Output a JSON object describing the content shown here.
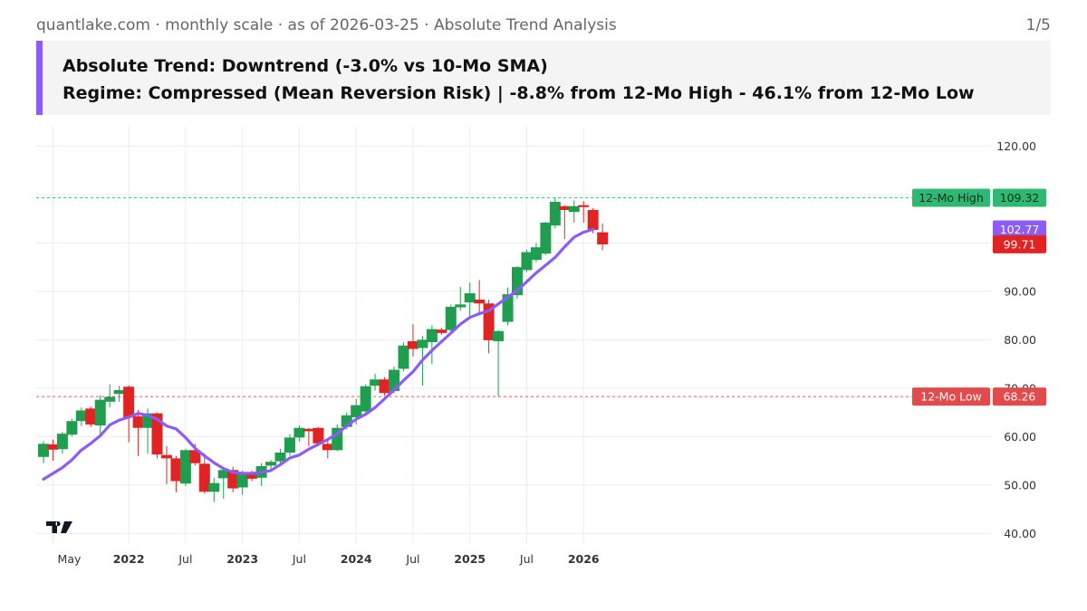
{
  "header": {
    "source_line": "quantlake.com · monthly scale · as of 2026-03-25 · Absolute Trend Analysis",
    "page_indicator": "1/5",
    "title_line1": "Absolute Trend: Downtrend (-3.0% vs 10-Mo SMA)",
    "title_line2": "Regime: Compressed (Mean Reversion Risk) | -8.8% from 12-Mo High - 46.1% from 12-Mo Low"
  },
  "colors": {
    "up": "#1e9e4e",
    "down": "#e02424",
    "sma": "#8c5cf6",
    "high_line": "#3fc48a",
    "low_line": "#e06060",
    "accent": "#8c5cf6"
  },
  "chart_data": {
    "type": "candlestick",
    "title": "",
    "xlabel": "",
    "ylabel": "",
    "ylim": [
      38,
      124
    ],
    "y_ticks": [
      "40.00",
      "50.00",
      "60.00",
      "70.00",
      "80.00",
      "90.00",
      "100.00",
      "110.00",
      "120.00"
    ],
    "x_tick_labels": [
      {
        "label": "May",
        "month": "2021-05",
        "bold": false
      },
      {
        "label": "2022",
        "month": "2022-01",
        "bold": true
      },
      {
        "label": "Jul",
        "month": "2022-07",
        "bold": false
      },
      {
        "label": "2023",
        "month": "2023-01",
        "bold": true
      },
      {
        "label": "Jul",
        "month": "2023-07",
        "bold": false
      },
      {
        "label": "2024",
        "month": "2024-01",
        "bold": true
      },
      {
        "label": "Jul",
        "month": "2024-07",
        "bold": false
      },
      {
        "label": "2025",
        "month": "2025-01",
        "bold": true
      },
      {
        "label": "Jul",
        "month": "2025-07",
        "bold": false
      },
      {
        "label": "2026",
        "month": "2026-01",
        "bold": true
      }
    ],
    "series": [
      {
        "name": "",
        "type": "ohlc",
        "data": [
          {
            "month": "2021-04",
            "o": 55.8,
            "h": 59.0,
            "l": 54.5,
            "c": 58.5
          },
          {
            "month": "2021-05",
            "o": 58.4,
            "h": 59.4,
            "l": 55.0,
            "c": 57.3
          },
          {
            "month": "2021-06",
            "o": 57.4,
            "h": 61.0,
            "l": 56.5,
            "c": 60.6
          },
          {
            "month": "2021-07",
            "o": 60.4,
            "h": 63.7,
            "l": 60.0,
            "c": 63.2
          },
          {
            "month": "2021-08",
            "o": 63.2,
            "h": 66.0,
            "l": 62.2,
            "c": 65.4
          },
          {
            "month": "2021-09",
            "o": 65.8,
            "h": 66.2,
            "l": 62.0,
            "c": 62.5
          },
          {
            "month": "2021-10",
            "o": 62.3,
            "h": 68.5,
            "l": 60.5,
            "c": 67.6
          },
          {
            "month": "2021-11",
            "o": 67.2,
            "h": 70.8,
            "l": 66.0,
            "c": 68.2
          },
          {
            "month": "2021-12",
            "o": 68.8,
            "h": 70.5,
            "l": 67.2,
            "c": 69.6
          },
          {
            "month": "2022-01",
            "o": 70.3,
            "h": 70.6,
            "l": 58.8,
            "c": 64.0
          },
          {
            "month": "2022-02",
            "o": 64.2,
            "h": 65.5,
            "l": 56.0,
            "c": 61.8
          },
          {
            "month": "2022-03",
            "o": 61.8,
            "h": 65.8,
            "l": 56.5,
            "c": 64.8
          },
          {
            "month": "2022-04",
            "o": 64.8,
            "h": 65.0,
            "l": 55.5,
            "c": 56.3
          },
          {
            "month": "2022-05",
            "o": 56.2,
            "h": 58.0,
            "l": 50.2,
            "c": 55.5
          },
          {
            "month": "2022-06",
            "o": 55.5,
            "h": 56.0,
            "l": 48.5,
            "c": 50.8
          },
          {
            "month": "2022-07",
            "o": 50.3,
            "h": 57.5,
            "l": 49.8,
            "c": 57.2
          },
          {
            "month": "2022-08",
            "o": 57.2,
            "h": 58.5,
            "l": 54.0,
            "c": 54.5
          },
          {
            "month": "2022-09",
            "o": 54.4,
            "h": 56.5,
            "l": 48.2,
            "c": 48.6
          },
          {
            "month": "2022-10",
            "o": 48.6,
            "h": 51.5,
            "l": 46.5,
            "c": 50.4
          },
          {
            "month": "2022-11",
            "o": 51.4,
            "h": 53.5,
            "l": 47.2,
            "c": 53.1
          },
          {
            "month": "2022-12",
            "o": 53.1,
            "h": 53.8,
            "l": 48.5,
            "c": 49.3
          },
          {
            "month": "2023-01",
            "o": 49.5,
            "h": 53.0,
            "l": 48.0,
            "c": 52.2
          },
          {
            "month": "2023-02",
            "o": 52.2,
            "h": 53.0,
            "l": 50.8,
            "c": 51.3
          },
          {
            "month": "2023-03",
            "o": 51.5,
            "h": 54.5,
            "l": 49.8,
            "c": 53.9
          },
          {
            "month": "2023-04",
            "o": 54.0,
            "h": 55.2,
            "l": 53.0,
            "c": 54.8
          },
          {
            "month": "2023-05",
            "o": 54.9,
            "h": 57.5,
            "l": 54.0,
            "c": 56.7
          },
          {
            "month": "2023-06",
            "o": 56.7,
            "h": 60.5,
            "l": 56.0,
            "c": 59.8
          },
          {
            "month": "2023-07",
            "o": 59.8,
            "h": 62.3,
            "l": 59.0,
            "c": 61.8
          },
          {
            "month": "2023-08",
            "o": 61.6,
            "h": 61.8,
            "l": 58.0,
            "c": 61.1
          },
          {
            "month": "2023-09",
            "o": 61.8,
            "h": 62.0,
            "l": 58.5,
            "c": 58.6
          },
          {
            "month": "2023-10",
            "o": 58.5,
            "h": 59.5,
            "l": 55.5,
            "c": 57.2
          },
          {
            "month": "2023-11",
            "o": 57.2,
            "h": 62.5,
            "l": 57.0,
            "c": 61.8
          },
          {
            "month": "2023-12",
            "o": 62.0,
            "h": 65.0,
            "l": 61.5,
            "c": 64.4
          },
          {
            "month": "2024-01",
            "o": 64.0,
            "h": 67.8,
            "l": 62.5,
            "c": 66.5
          },
          {
            "month": "2024-02",
            "o": 65.2,
            "h": 70.8,
            "l": 65.0,
            "c": 70.4
          },
          {
            "month": "2024-03",
            "o": 70.5,
            "h": 73.0,
            "l": 69.5,
            "c": 71.8
          },
          {
            "month": "2024-04",
            "o": 71.8,
            "h": 72.3,
            "l": 68.5,
            "c": 69.0
          },
          {
            "month": "2024-05",
            "o": 69.4,
            "h": 74.5,
            "l": 69.0,
            "c": 73.8
          },
          {
            "month": "2024-06",
            "o": 74.0,
            "h": 79.5,
            "l": 73.5,
            "c": 78.8
          },
          {
            "month": "2024-07",
            "o": 79.7,
            "h": 83.2,
            "l": 76.5,
            "c": 78.1
          },
          {
            "month": "2024-08",
            "o": 78.3,
            "h": 80.8,
            "l": 70.5,
            "c": 80.0
          },
          {
            "month": "2024-09",
            "o": 79.5,
            "h": 83.0,
            "l": 75.0,
            "c": 82.2
          },
          {
            "month": "2024-10",
            "o": 82.1,
            "h": 82.5,
            "l": 81.0,
            "c": 81.4
          },
          {
            "month": "2024-11",
            "o": 82.0,
            "h": 87.3,
            "l": 81.5,
            "c": 86.8
          },
          {
            "month": "2024-12",
            "o": 86.7,
            "h": 90.9,
            "l": 86.0,
            "c": 87.3
          },
          {
            "month": "2025-01",
            "o": 87.7,
            "h": 91.8,
            "l": 84.8,
            "c": 89.6
          },
          {
            "month": "2025-02",
            "o": 88.3,
            "h": 92.3,
            "l": 85.0,
            "c": 87.5
          },
          {
            "month": "2025-03",
            "o": 87.5,
            "h": 88.3,
            "l": 77.2,
            "c": 79.9
          },
          {
            "month": "2025-04",
            "o": 79.7,
            "h": 82.0,
            "l": 68.3,
            "c": 81.8
          },
          {
            "month": "2025-05",
            "o": 83.7,
            "h": 90.8,
            "l": 83.0,
            "c": 89.4
          },
          {
            "month": "2025-06",
            "o": 89.2,
            "h": 95.2,
            "l": 88.5,
            "c": 95.0
          },
          {
            "month": "2025-07",
            "o": 94.4,
            "h": 98.6,
            "l": 94.0,
            "c": 98.1
          },
          {
            "month": "2025-08",
            "o": 96.5,
            "h": 100.0,
            "l": 96.0,
            "c": 99.1
          },
          {
            "month": "2025-09",
            "o": 97.8,
            "h": 104.3,
            "l": 97.5,
            "c": 104.2
          },
          {
            "month": "2025-10",
            "o": 103.6,
            "h": 109.3,
            "l": 103.0,
            "c": 108.5
          },
          {
            "month": "2025-11",
            "o": 107.6,
            "h": 107.8,
            "l": 100.8,
            "c": 106.8
          },
          {
            "month": "2025-12",
            "o": 106.4,
            "h": 108.8,
            "l": 104.2,
            "c": 107.6
          },
          {
            "month": "2026-01",
            "o": 107.8,
            "h": 108.6,
            "l": 104.2,
            "c": 107.4
          },
          {
            "month": "2026-02",
            "o": 106.8,
            "h": 107.2,
            "l": 102.0,
            "c": 102.7
          },
          {
            "month": "2026-03",
            "o": 102.2,
            "h": 104.0,
            "l": 98.5,
            "c": 99.7
          }
        ]
      },
      {
        "name": "",
        "type": "line",
        "data": [
          {
            "month": "2021-04",
            "v": 51.2
          },
          {
            "month": "2021-05",
            "v": 52.4
          },
          {
            "month": "2021-06",
            "v": 53.6
          },
          {
            "month": "2021-07",
            "v": 55.2
          },
          {
            "month": "2021-08",
            "v": 57.2
          },
          {
            "month": "2021-09",
            "v": 58.6
          },
          {
            "month": "2021-10",
            "v": 60.2
          },
          {
            "month": "2021-11",
            "v": 62.4
          },
          {
            "month": "2021-12",
            "v": 63.4
          },
          {
            "month": "2022-01",
            "v": 64.0
          },
          {
            "month": "2022-02",
            "v": 64.8
          },
          {
            "month": "2022-03",
            "v": 64.4
          },
          {
            "month": "2022-04",
            "v": 63.6
          },
          {
            "month": "2022-05",
            "v": 62.2
          },
          {
            "month": "2022-06",
            "v": 61.6
          },
          {
            "month": "2022-07",
            "v": 59.8
          },
          {
            "month": "2022-08",
            "v": 57.6
          },
          {
            "month": "2022-09",
            "v": 56.0
          },
          {
            "month": "2022-10",
            "v": 54.6
          },
          {
            "month": "2022-11",
            "v": 53.4
          },
          {
            "month": "2022-12",
            "v": 52.6
          },
          {
            "month": "2023-01",
            "v": 52.4
          },
          {
            "month": "2023-02",
            "v": 52.4
          },
          {
            "month": "2023-03",
            "v": 52.6
          },
          {
            "month": "2023-04",
            "v": 53.0
          },
          {
            "month": "2023-05",
            "v": 54.2
          },
          {
            "month": "2023-06",
            "v": 55.6
          },
          {
            "month": "2023-07",
            "v": 56.2
          },
          {
            "month": "2023-08",
            "v": 57.4
          },
          {
            "month": "2023-09",
            "v": 58.4
          },
          {
            "month": "2023-10",
            "v": 59.4
          },
          {
            "month": "2023-11",
            "v": 60.6
          },
          {
            "month": "2023-12",
            "v": 62.2
          },
          {
            "month": "2024-01",
            "v": 63.6
          },
          {
            "month": "2024-02",
            "v": 64.6
          },
          {
            "month": "2024-03",
            "v": 66.0
          },
          {
            "month": "2024-04",
            "v": 67.8
          },
          {
            "month": "2024-05",
            "v": 69.6
          },
          {
            "month": "2024-06",
            "v": 71.6
          },
          {
            "month": "2024-07",
            "v": 73.4
          },
          {
            "month": "2024-08",
            "v": 75.8
          },
          {
            "month": "2024-09",
            "v": 77.8
          },
          {
            "month": "2024-10",
            "v": 79.6
          },
          {
            "month": "2024-11",
            "v": 81.4
          },
          {
            "month": "2024-12",
            "v": 83.2
          },
          {
            "month": "2025-01",
            "v": 84.6
          },
          {
            "month": "2025-02",
            "v": 85.4
          },
          {
            "month": "2025-03",
            "v": 86.0
          },
          {
            "month": "2025-04",
            "v": 87.4
          },
          {
            "month": "2025-05",
            "v": 88.8
          },
          {
            "month": "2025-06",
            "v": 90.2
          },
          {
            "month": "2025-07",
            "v": 92.0
          },
          {
            "month": "2025-08",
            "v": 93.8
          },
          {
            "month": "2025-09",
            "v": 95.4
          },
          {
            "month": "2025-10",
            "v": 97.0
          },
          {
            "month": "2025-11",
            "v": 99.2
          },
          {
            "month": "2025-12",
            "v": 101.2
          },
          {
            "month": "2026-01",
            "v": 102.2
          },
          {
            "month": "2026-02",
            "v": 102.8
          }
        ]
      }
    ],
    "reference_lines": [
      {
        "label": "12-Mo High",
        "value": 109.32,
        "price_label": "109.32",
        "color": "#3fc48a"
      },
      {
        "label": "12-Mo Low",
        "value": 68.26,
        "price_label": "68.26",
        "color": "#e06060"
      }
    ],
    "price_tags": [
      {
        "value": 102.77,
        "label": "102.77",
        "color": "#8c5cf6"
      },
      {
        "value": 99.71,
        "label": "99.71",
        "color": "#e02424"
      }
    ],
    "grid": true,
    "legend": "none"
  }
}
